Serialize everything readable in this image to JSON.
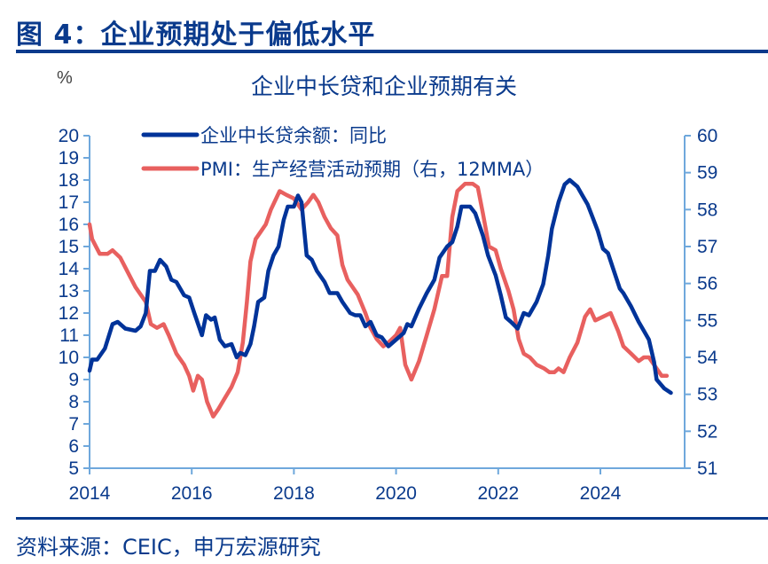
{
  "figure": {
    "title": "图 4：企业预期处于偏低水平",
    "source": "资料来源：CEIC，申万宏源研究"
  },
  "colors": {
    "primary": "#0a3a8c",
    "loan_series": "#003399",
    "pmi_series": "#e8605f",
    "axis": "#6fa8dc"
  },
  "chart_data": {
    "type": "line",
    "title": "企业中长贷和企业预期有关",
    "left_unit": "%",
    "xlabel": "",
    "ylabel_left": "%",
    "ylim_left": [
      5,
      20
    ],
    "ylim_right": [
      51,
      60
    ],
    "xlim": [
      2014,
      2025.4
    ],
    "x_ticks": [
      "2014",
      "2016",
      "2018",
      "2020",
      "2022",
      "2024"
    ],
    "y_ticks_left": [
      "20",
      "19",
      "18",
      "17",
      "16",
      "15",
      "14",
      "13",
      "12",
      "11",
      "10",
      "9",
      "8",
      "7",
      "6",
      "5"
    ],
    "y_ticks_right": [
      "60",
      "59",
      "58",
      "57",
      "56",
      "55",
      "54",
      "53",
      "52",
      "51"
    ],
    "legend_position": "top-left inside",
    "grid": false,
    "series": [
      {
        "name": "企业中长贷余额：同比",
        "axis": "left",
        "points": [
          [
            2014.0,
            9.4
          ],
          [
            2014.05,
            9.9
          ],
          [
            2014.15,
            9.9
          ],
          [
            2014.3,
            10.4
          ],
          [
            2014.45,
            11.5
          ],
          [
            2014.55,
            11.6
          ],
          [
            2014.7,
            11.3
          ],
          [
            2014.9,
            11.2
          ],
          [
            2015.0,
            11.4
          ],
          [
            2015.1,
            12.0
          ],
          [
            2015.18,
            13.9
          ],
          [
            2015.28,
            13.9
          ],
          [
            2015.38,
            14.4
          ],
          [
            2015.5,
            14.1
          ],
          [
            2015.6,
            13.5
          ],
          [
            2015.7,
            13.4
          ],
          [
            2015.85,
            12.8
          ],
          [
            2015.95,
            12.7
          ],
          [
            2016.05,
            12.0
          ],
          [
            2016.2,
            11.0
          ],
          [
            2016.28,
            11.9
          ],
          [
            2016.38,
            11.7
          ],
          [
            2016.45,
            11.8
          ],
          [
            2016.55,
            10.8
          ],
          [
            2016.65,
            10.5
          ],
          [
            2016.78,
            10.6
          ],
          [
            2016.88,
            10.0
          ],
          [
            2016.95,
            10.2
          ],
          [
            2017.05,
            10.1
          ],
          [
            2017.15,
            10.6
          ],
          [
            2017.22,
            11.4
          ],
          [
            2017.3,
            12.5
          ],
          [
            2017.42,
            12.7
          ],
          [
            2017.5,
            13.9
          ],
          [
            2017.6,
            14.6
          ],
          [
            2017.7,
            15.0
          ],
          [
            2017.8,
            16.2
          ],
          [
            2017.88,
            16.8
          ],
          [
            2018.0,
            16.8
          ],
          [
            2018.08,
            17.3
          ],
          [
            2018.15,
            17.0
          ],
          [
            2018.25,
            14.6
          ],
          [
            2018.35,
            14.4
          ],
          [
            2018.45,
            13.9
          ],
          [
            2018.6,
            13.4
          ],
          [
            2018.7,
            12.9
          ],
          [
            2018.85,
            12.9
          ],
          [
            2018.95,
            12.5
          ],
          [
            2019.1,
            12.0
          ],
          [
            2019.2,
            11.9
          ],
          [
            2019.3,
            11.9
          ],
          [
            2019.4,
            11.4
          ],
          [
            2019.5,
            11.6
          ],
          [
            2019.62,
            11.0
          ],
          [
            2019.72,
            10.9
          ],
          [
            2019.85,
            10.5
          ],
          [
            2020.0,
            10.8
          ],
          [
            2020.15,
            11.1
          ],
          [
            2020.22,
            11.5
          ],
          [
            2020.3,
            11.4
          ],
          [
            2020.45,
            12.2
          ],
          [
            2020.6,
            12.9
          ],
          [
            2020.75,
            13.5
          ],
          [
            2020.85,
            14.5
          ],
          [
            2021.0,
            15.0
          ],
          [
            2021.1,
            15.2
          ],
          [
            2021.2,
            15.9
          ],
          [
            2021.28,
            16.8
          ],
          [
            2021.45,
            16.8
          ],
          [
            2021.55,
            16.5
          ],
          [
            2021.7,
            15.5
          ],
          [
            2021.8,
            14.6
          ],
          [
            2021.95,
            13.7
          ],
          [
            2022.05,
            12.8
          ],
          [
            2022.15,
            11.8
          ],
          [
            2022.25,
            11.6
          ],
          [
            2022.38,
            11.3
          ],
          [
            2022.5,
            12.0
          ],
          [
            2022.6,
            11.9
          ],
          [
            2022.75,
            12.5
          ],
          [
            2022.88,
            13.3
          ],
          [
            2022.98,
            14.6
          ],
          [
            2023.05,
            15.8
          ],
          [
            2023.18,
            17.0
          ],
          [
            2023.3,
            17.8
          ],
          [
            2023.4,
            18.0
          ],
          [
            2023.55,
            17.7
          ],
          [
            2023.65,
            17.3
          ],
          [
            2023.75,
            16.9
          ],
          [
            2023.85,
            16.3
          ],
          [
            2023.95,
            15.7
          ],
          [
            2024.05,
            14.9
          ],
          [
            2024.15,
            14.7
          ],
          [
            2024.25,
            14.0
          ],
          [
            2024.38,
            13.1
          ],
          [
            2024.45,
            12.9
          ],
          [
            2024.6,
            12.3
          ],
          [
            2024.75,
            11.6
          ],
          [
            2024.85,
            11.2
          ],
          [
            2024.95,
            10.8
          ],
          [
            2025.05,
            9.8
          ],
          [
            2025.1,
            9.0
          ],
          [
            2025.25,
            8.6
          ],
          [
            2025.38,
            8.4
          ]
        ]
      },
      {
        "name": "PMI：生产经营活动预期（右，12MMA）",
        "axis": "right",
        "points": [
          [
            2014.0,
            57.6
          ],
          [
            2014.05,
            57.2
          ],
          [
            2014.2,
            56.8
          ],
          [
            2014.35,
            56.8
          ],
          [
            2014.45,
            56.9
          ],
          [
            2014.6,
            56.7
          ],
          [
            2014.75,
            56.3
          ],
          [
            2014.9,
            55.9
          ],
          [
            2015.0,
            55.7
          ],
          [
            2015.1,
            55.5
          ],
          [
            2015.2,
            54.9
          ],
          [
            2015.32,
            54.8
          ],
          [
            2015.45,
            54.9
          ],
          [
            2015.55,
            54.6
          ],
          [
            2015.7,
            54.1
          ],
          [
            2015.85,
            53.8
          ],
          [
            2015.95,
            53.5
          ],
          [
            2016.03,
            53.1
          ],
          [
            2016.12,
            53.5
          ],
          [
            2016.2,
            53.4
          ],
          [
            2016.3,
            52.8
          ],
          [
            2016.42,
            52.4
          ],
          [
            2016.52,
            52.6
          ],
          [
            2016.65,
            52.9
          ],
          [
            2016.78,
            53.2
          ],
          [
            2016.9,
            53.6
          ],
          [
            2017.0,
            54.4
          ],
          [
            2017.08,
            55.5
          ],
          [
            2017.15,
            56.6
          ],
          [
            2017.25,
            57.2
          ],
          [
            2017.35,
            57.4
          ],
          [
            2017.45,
            57.6
          ],
          [
            2017.55,
            58.0
          ],
          [
            2017.72,
            58.5
          ],
          [
            2017.85,
            58.4
          ],
          [
            2018.0,
            58.3
          ],
          [
            2018.15,
            58.0
          ],
          [
            2018.28,
            58.2
          ],
          [
            2018.38,
            58.4
          ],
          [
            2018.48,
            58.2
          ],
          [
            2018.6,
            57.8
          ],
          [
            2018.72,
            57.5
          ],
          [
            2018.85,
            57.3
          ],
          [
            2018.95,
            56.5
          ],
          [
            2019.05,
            56.1
          ],
          [
            2019.25,
            55.7
          ],
          [
            2019.4,
            55.2
          ],
          [
            2019.5,
            54.8
          ],
          [
            2019.62,
            54.5
          ],
          [
            2019.75,
            54.3
          ],
          [
            2019.85,
            54.4
          ],
          [
            2020.0,
            54.6
          ],
          [
            2020.08,
            54.8
          ],
          [
            2020.18,
            53.8
          ],
          [
            2020.3,
            53.4
          ],
          [
            2020.45,
            53.9
          ],
          [
            2020.6,
            54.6
          ],
          [
            2020.75,
            55.3
          ],
          [
            2020.9,
            56.2
          ],
          [
            2021.0,
            56.2
          ],
          [
            2021.1,
            57.8
          ],
          [
            2021.2,
            58.5
          ],
          [
            2021.35,
            58.7
          ],
          [
            2021.5,
            58.7
          ],
          [
            2021.6,
            58.6
          ],
          [
            2021.7,
            57.9
          ],
          [
            2021.82,
            57.0
          ],
          [
            2021.95,
            56.9
          ],
          [
            2022.05,
            56.4
          ],
          [
            2022.2,
            55.8
          ],
          [
            2022.3,
            55.3
          ],
          [
            2022.4,
            54.5
          ],
          [
            2022.5,
            54.1
          ],
          [
            2022.62,
            54.0
          ],
          [
            2022.75,
            53.8
          ],
          [
            2022.9,
            53.7
          ],
          [
            2023.0,
            53.6
          ],
          [
            2023.1,
            53.6
          ],
          [
            2023.18,
            53.7
          ],
          [
            2023.28,
            53.6
          ],
          [
            2023.4,
            54.0
          ],
          [
            2023.55,
            54.4
          ],
          [
            2023.7,
            55.1
          ],
          [
            2023.8,
            55.3
          ],
          [
            2023.9,
            55.0
          ],
          [
            2024.05,
            55.1
          ],
          [
            2024.2,
            55.2
          ],
          [
            2024.35,
            54.7
          ],
          [
            2024.45,
            54.3
          ],
          [
            2024.6,
            54.1
          ],
          [
            2024.75,
            53.9
          ],
          [
            2024.85,
            54.0
          ],
          [
            2024.95,
            54.0
          ],
          [
            2025.1,
            53.7
          ],
          [
            2025.2,
            53.5
          ],
          [
            2025.3,
            53.5
          ]
        ]
      }
    ]
  }
}
